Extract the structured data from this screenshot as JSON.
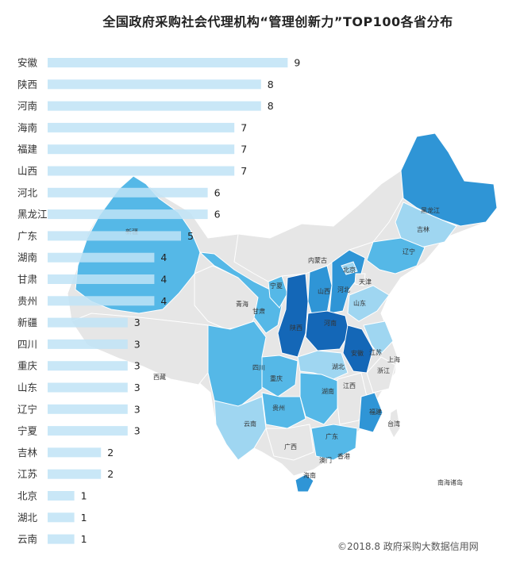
{
  "title": "全国政府采购社会代理机构“管理创新力”TOP100各省分布",
  "footer": "©2018.8 政府采购大数据信用网",
  "colors": {
    "bar": "#bfe3f6",
    "land_grey": "#e6e6e6",
    "light": "#9fd6f1",
    "mid": "#55b8e7",
    "strong": "#2f95d6",
    "dark": "#1467b7"
  },
  "map_labels": [
    "新疆",
    "西藏",
    "青海",
    "甘肃",
    "宁夏",
    "内蒙古",
    "黑龙江",
    "吉林",
    "辽宁",
    "北京",
    "天津",
    "河北",
    "山西",
    "陕西",
    "山东",
    "河南",
    "安徽",
    "江苏",
    "上海",
    "浙江",
    "湖北",
    "四川",
    "重庆",
    "湖南",
    "江西",
    "贵州",
    "云南",
    "广西",
    "广东",
    "福建",
    "台湾",
    "澳门",
    "香港",
    "海南",
    "南海诸岛"
  ],
  "chart_data": {
    "type": "bar",
    "orientation": "horizontal",
    "title": "全国政府采购社会代理机构“管理创新力”TOP100各省分布",
    "categories": [
      "安徽",
      "陕西",
      "河南",
      "海南",
      "福建",
      "山西",
      "河北",
      "黑龙江",
      "广东",
      "湖南",
      "甘肃",
      "贵州",
      "新疆",
      "四川",
      "重庆",
      "山东",
      "辽宁",
      "宁夏",
      "吉林",
      "江苏",
      "北京",
      "湖北",
      "云南"
    ],
    "values": [
      9,
      8,
      8,
      7,
      7,
      7,
      6,
      6,
      5,
      4,
      4,
      4,
      3,
      3,
      3,
      3,
      3,
      3,
      2,
      2,
      1,
      1,
      1
    ],
    "xlim": [
      0,
      9
    ],
    "grid": false,
    "legend": "none"
  }
}
